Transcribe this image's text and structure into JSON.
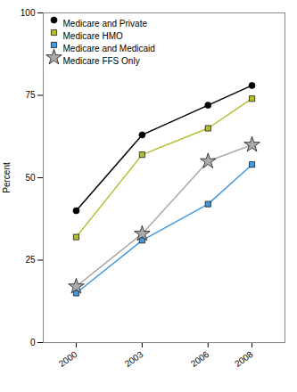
{
  "chart_data": {
    "type": "line",
    "x": [
      2000,
      2003,
      2006,
      2008
    ],
    "series": [
      {
        "name": "Medicare and Private",
        "color": "#000000",
        "marker": "circle",
        "values": [
          40,
          63,
          72,
          78
        ]
      },
      {
        "name": "Medicare HMO",
        "color": "#b5bd2b",
        "marker": "square",
        "values": [
          32,
          57,
          65,
          74
        ]
      },
      {
        "name": "Medicare and Medicaid",
        "color": "#4499dd",
        "marker": "square",
        "values": [
          15,
          31,
          42,
          54
        ]
      },
      {
        "name": "Medicare FFS Only",
        "color": "#aaaaaa",
        "marker": "star",
        "values": [
          17,
          33,
          55,
          60
        ]
      }
    ],
    "ylabel": "Percent",
    "ylim": [
      0,
      100
    ],
    "yticks": [
      0,
      25,
      50,
      75,
      100
    ],
    "xlim": [
      1998.5,
      2009.5
    ],
    "xticks": [
      2000,
      2003,
      2006,
      2008
    ],
    "legend": "upper left"
  }
}
